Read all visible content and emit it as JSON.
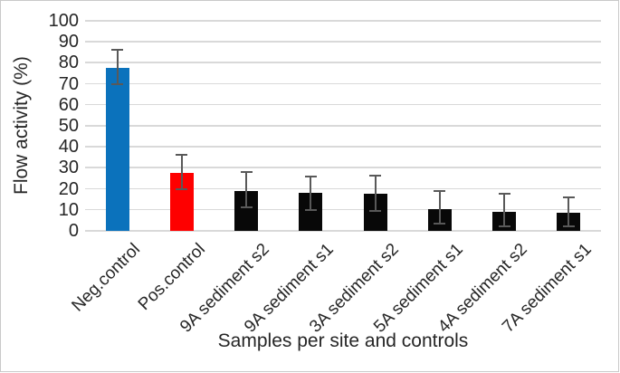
{
  "figure": {
    "border_color": "#c9c9c9",
    "background": "#ffffff"
  },
  "chart_data": {
    "type": "bar",
    "title": "",
    "xlabel": "Samples per site and controls",
    "ylabel": "Flow activity (%)",
    "ylim": [
      0,
      100
    ],
    "ytick_interval": 10,
    "grid": true,
    "legend": "none",
    "categories": [
      "Neg.control",
      "Pos.control",
      "9A sediment s2",
      "9A sediment s1",
      "3A sediment s2",
      "5A sediment s1",
      "4A sediment s2",
      "7A sediment s1"
    ],
    "values": [
      77.5,
      27.5,
      19,
      18,
      17.5,
      10.5,
      9,
      8.5
    ],
    "error_low": [
      70,
      20,
      11,
      10,
      9.5,
      3.5,
      2,
      2
    ],
    "error_high": [
      86,
      36,
      28,
      26,
      26.5,
      19,
      17.5,
      16
    ],
    "bar_colors": [
      "#0b72bc",
      "#fe0000",
      "#080808",
      "#080808",
      "#080808",
      "#080808",
      "#080808",
      "#080808"
    ],
    "gridline_color": "#d9d9d9",
    "error_bar_color": "#595959",
    "text_color": "#262626"
  }
}
